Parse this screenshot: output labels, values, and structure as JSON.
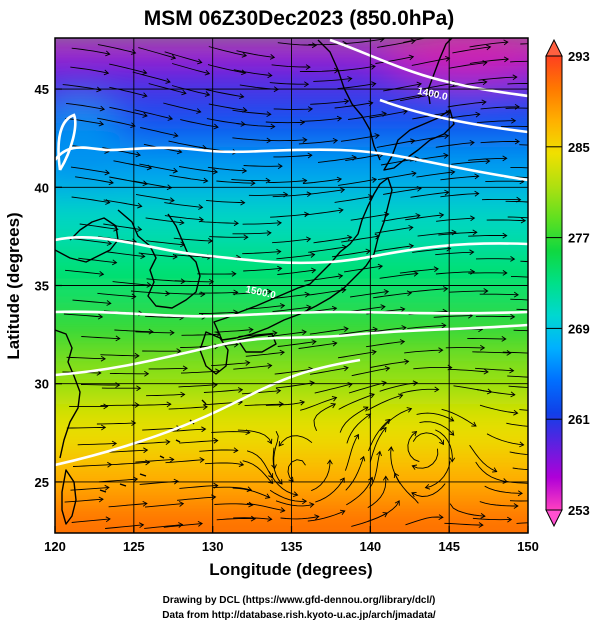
{
  "title": "MSM 06Z30Dec2023 (850.0hPa)",
  "chart_data": {
    "type": "map",
    "xlabel": "Longitude (degrees)",
    "ylabel": "Latitude  (degrees)",
    "xlim": [
      120,
      150
    ],
    "ylim": [
      22.4,
      47.6
    ],
    "xticks": [
      "120",
      "125",
      "130",
      "135",
      "140",
      "145",
      "150"
    ],
    "yticks": [
      "25",
      "30",
      "35",
      "40",
      "45"
    ],
    "xtick_values": [
      120,
      125,
      130,
      135,
      140,
      145,
      150
    ],
    "ytick_values": [
      25,
      30,
      35,
      40,
      45
    ],
    "grid": true,
    "colorbar": {
      "min": 253,
      "max": 293,
      "ticks": [
        "253",
        "261",
        "269",
        "277",
        "285",
        "293"
      ],
      "tick_values": [
        253,
        261,
        269,
        277,
        285,
        293
      ],
      "colors": [
        "#ff40c0",
        "#b000d8",
        "#6020e0",
        "#1040e8",
        "#0070ff",
        "#00b0ff",
        "#00d8d0",
        "#00e088",
        "#10d840",
        "#60e020",
        "#b0e010",
        "#f0e000",
        "#ffb000",
        "#ff7800",
        "#ff4020"
      ]
    },
    "contour_labels": [
      {
        "text": "1400.0",
        "lon": 143.9,
        "lat": 44.6
      },
      {
        "text": "1500.0",
        "lon": 133.0,
        "lat": 34.5
      }
    ]
  },
  "credits": {
    "line1": "Drawing by DCL (https://www.gfd-dennou.org/library/dcl/)",
    "line2": "Data from http://database.rish.kyoto-u.ac.jp/arch/jmadata/"
  }
}
